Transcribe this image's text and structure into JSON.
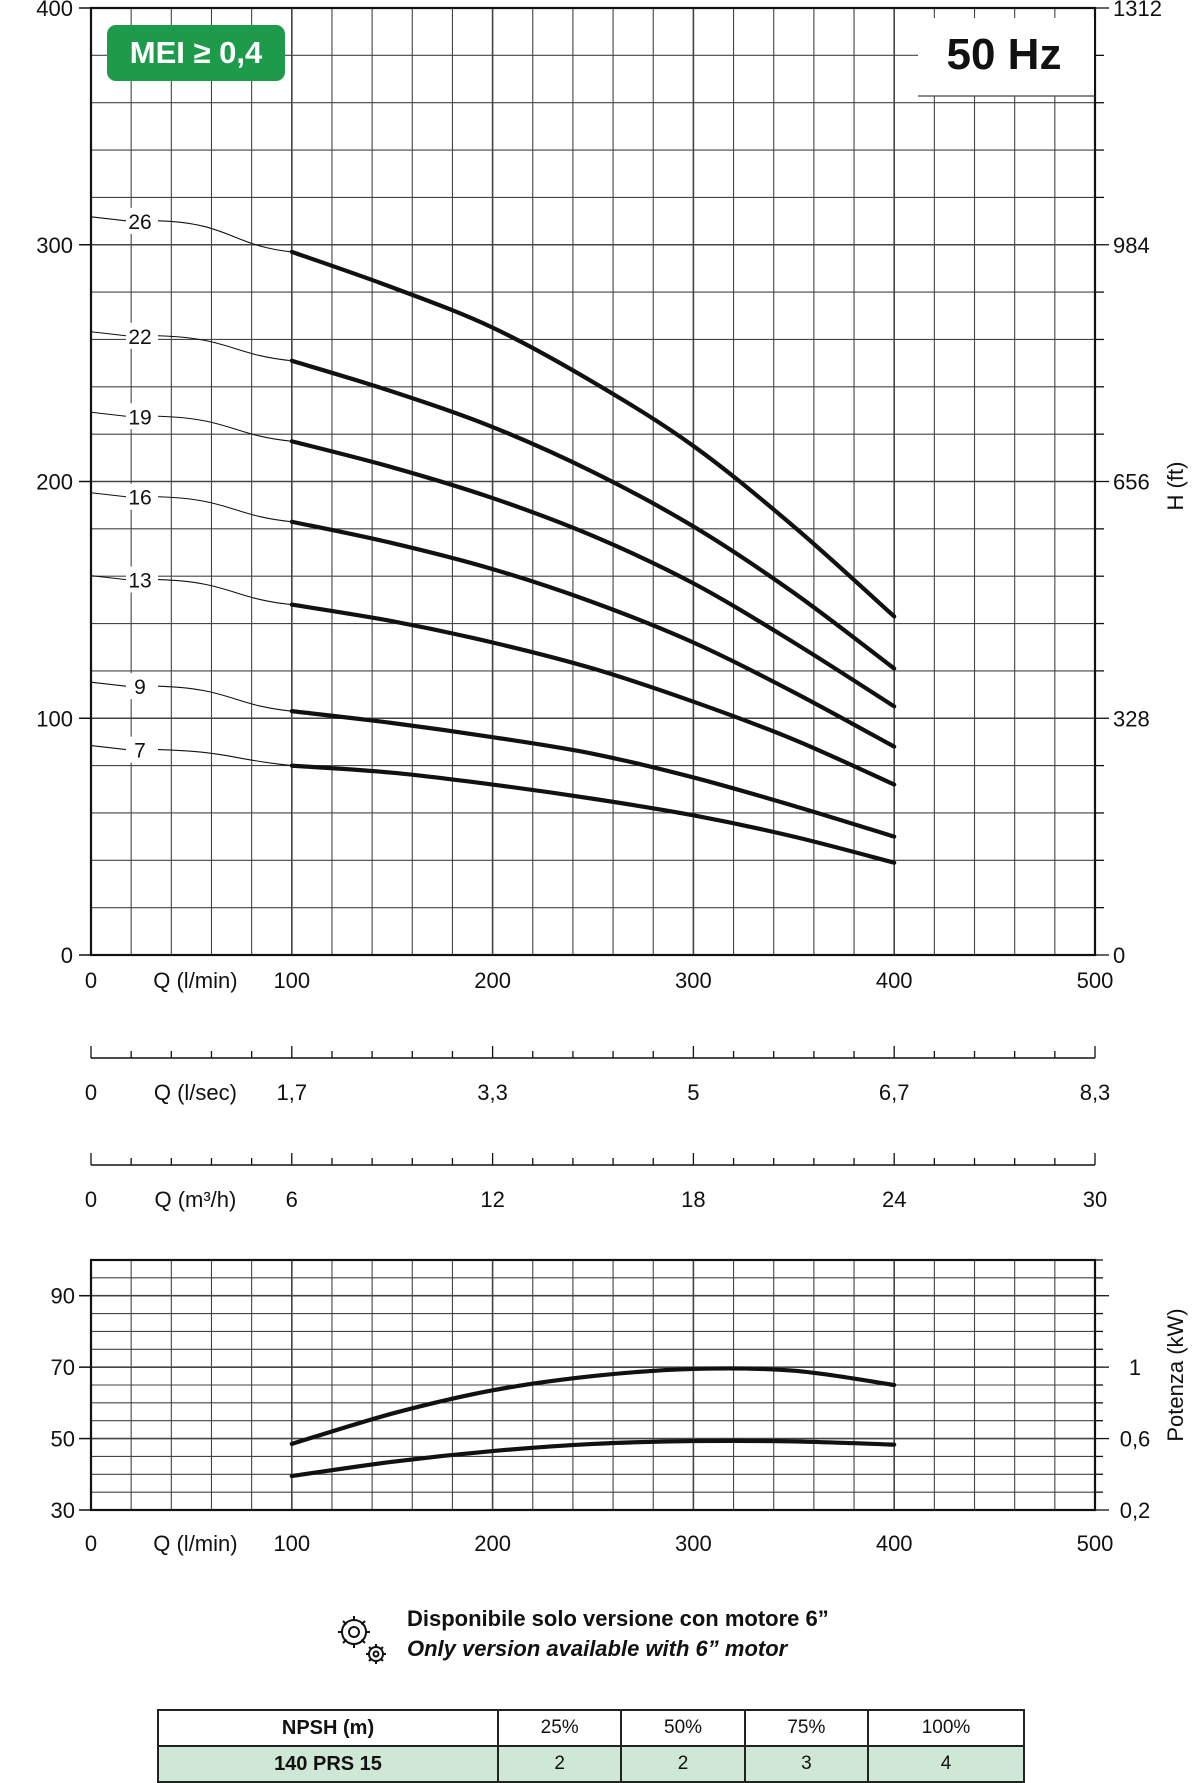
{
  "badge": {
    "text": "MEI ≥ 0,4",
    "color": "#1e9a4b"
  },
  "frequency": "50 Hz",
  "chart_data": [
    {
      "type": "line",
      "title": "",
      "ylabel_right": "H (ft)",
      "xlim": [
        0,
        500
      ],
      "ylim": [
        0,
        400
      ],
      "left_ticks": [
        "0",
        "100",
        "200",
        "300",
        "400"
      ],
      "right_ticks": [
        "0",
        "328",
        "656",
        "984",
        "1312"
      ],
      "axes": [
        {
          "label": "Q (l/min)",
          "ticks": [
            {
              "label": "0",
              "x": 0
            },
            {
              "label": "100",
              "x": 100
            },
            {
              "label": "200",
              "x": 200
            },
            {
              "label": "300",
              "x": 300
            },
            {
              "label": "400",
              "x": 400
            },
            {
              "label": "500",
              "x": 500
            }
          ]
        },
        {
          "label": "Q (l/sec)",
          "ticks": [
            {
              "label": "0",
              "x": 0
            },
            {
              "label": "1,7",
              "x": 100
            },
            {
              "label": "3,3",
              "x": 200
            },
            {
              "label": "5",
              "x": 300
            },
            {
              "label": "6,7",
              "x": 400
            },
            {
              "label": "8,3",
              "x": 500
            }
          ]
        },
        {
          "label": "Q (m³/h)",
          "ticks": [
            {
              "label": "0",
              "x": 0
            },
            {
              "label": "6",
              "x": 100
            },
            {
              "label": "12",
              "x": 200
            },
            {
              "label": "18",
              "x": 300
            },
            {
              "label": "24",
              "x": 400
            },
            {
              "label": "30",
              "x": 500
            }
          ]
        }
      ],
      "series": [
        {
          "name": "26",
          "x": [
            100,
            150,
            200,
            250,
            300,
            350,
            400
          ],
          "y": [
            297,
            282,
            265,
            242,
            215,
            181,
            143
          ]
        },
        {
          "name": "22",
          "x": [
            100,
            150,
            200,
            250,
            300,
            350,
            400
          ],
          "y": [
            251,
            238,
            223,
            204,
            181,
            153,
            121
          ]
        },
        {
          "name": "19",
          "x": [
            100,
            150,
            200,
            250,
            300,
            350,
            400
          ],
          "y": [
            217,
            206,
            193,
            177,
            157,
            132,
            105
          ]
        },
        {
          "name": "16",
          "x": [
            100,
            150,
            200,
            250,
            300,
            350,
            400
          ],
          "y": [
            183,
            174,
            163,
            149,
            132,
            111,
            88
          ]
        },
        {
          "name": "13",
          "x": [
            100,
            150,
            200,
            250,
            300,
            350,
            400
          ],
          "y": [
            148,
            141,
            132,
            121,
            107,
            91,
            72
          ]
        },
        {
          "name": "9",
          "x": [
            100,
            150,
            200,
            250,
            300,
            350,
            400
          ],
          "y": [
            103,
            98,
            92,
            85,
            75,
            63,
            50
          ]
        },
        {
          "name": "7",
          "x": [
            100,
            150,
            200,
            250,
            300,
            350,
            400
          ],
          "y": [
            80,
            77,
            72,
            66,
            59,
            50,
            39
          ]
        }
      ]
    },
    {
      "type": "line",
      "xlabel": "Q (l/min)",
      "ylabel_right": "Potenza (kW)",
      "xlim": [
        0,
        500
      ],
      "ylim": [
        30,
        100
      ],
      "x_ticks": [
        "0",
        "100",
        "200",
        "300",
        "400",
        "500"
      ],
      "left_ticks": [
        "30",
        "50",
        "70",
        "90"
      ],
      "right_ticks": [
        "0,2",
        "0,6",
        "1"
      ],
      "series": [
        {
          "x": [
            100,
            150,
            200,
            250,
            300,
            350,
            400
          ],
          "y": [
            48.5,
            57,
            63.5,
            67.5,
            69.5,
            69,
            65
          ]
        },
        {
          "x": [
            100,
            150,
            200,
            250,
            300,
            350,
            400
          ],
          "y": [
            39.5,
            43.5,
            46.5,
            48.5,
            49.3,
            49.2,
            48.3
          ]
        }
      ]
    }
  ],
  "note": {
    "line1": "Disponibile solo versione con motore 6”",
    "line2": "Only version available with 6” motor"
  },
  "npsh_table": {
    "header": [
      "NPSH (m)",
      "25%",
      "50%",
      "75%",
      "100%"
    ],
    "row": [
      "140 PRS 15",
      "2",
      "2",
      "3",
      "4"
    ]
  }
}
